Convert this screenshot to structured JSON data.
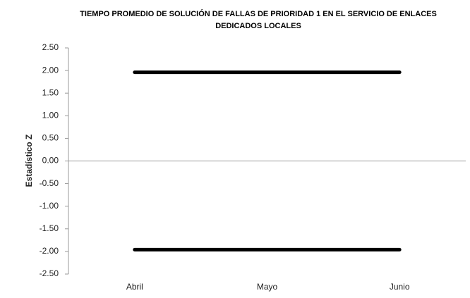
{
  "chart_data": {
    "type": "line",
    "title": "TIEMPO PROMEDIO DE SOLUCIÓN DE FALLAS DE PRIORIDAD 1 EN EL SERVICIO DE ENLACES DEDICADOS LOCALES",
    "y_label": "Estadístico Z",
    "categories": [
      "Abril",
      "Mayo",
      "Junio"
    ],
    "series": [
      {
        "color": "#000000",
        "values": [
          1.96,
          1.96,
          1.96
        ]
      },
      {
        "color": "#000000",
        "values": [
          -1.96,
          -1.96,
          -1.96
        ]
      }
    ],
    "ylim": [
      -2.5,
      2.5
    ],
    "yticks": [
      {
        "value": -2.5,
        "label": "-2.50"
      },
      {
        "value": -2,
        "label": "-2.00"
      },
      {
        "value": -1.5,
        "label": "-1.50"
      },
      {
        "value": -1,
        "label": "-1.00"
      },
      {
        "value": -0.5,
        "label": "-0.50"
      },
      {
        "value": 0,
        "label": "0.00"
      },
      {
        "value": 0.5,
        "label": "0.50"
      },
      {
        "value": 1,
        "label": "1.00"
      },
      {
        "value": 1.5,
        "label": "1.50"
      },
      {
        "value": 2,
        "label": "2.00"
      },
      {
        "value": 2.5,
        "label": "2.50"
      }
    ],
    "grid": false
  }
}
